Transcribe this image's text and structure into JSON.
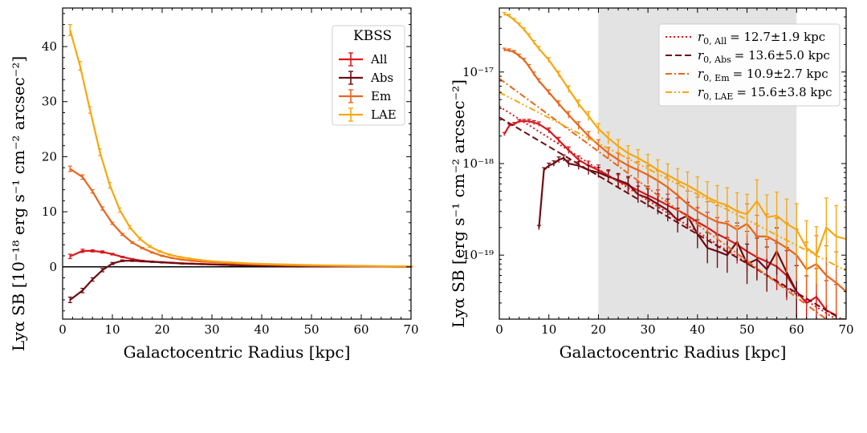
{
  "chart_data": [
    {
      "type": "line",
      "xlabel": "Galactocentric Radius [kpc]",
      "ylabel": "Lyα SB [10⁻¹⁸ erg s⁻¹ cm⁻² arcsec⁻²]",
      "xlim": [
        0,
        70
      ],
      "ylim": [
        -9.5,
        47
      ],
      "xticks": [
        "0",
        "10",
        "20",
        "30",
        "40",
        "50",
        "60",
        "70"
      ],
      "yticks": [
        "0",
        "10",
        "20",
        "30",
        "40"
      ],
      "zero_line": true,
      "legend": {
        "title": "KBSS",
        "placement": "top-right"
      },
      "colors": {
        "All": "#d7191c",
        "Abs": "#6e0d12",
        "Em": "#e8661d",
        "LAE": "#f5a812"
      },
      "series": [
        {
          "name": "All",
          "x": [
            1.5,
            4,
            6,
            8,
            10,
            12,
            14,
            16,
            18,
            20,
            22,
            24,
            26,
            28,
            30,
            32,
            34,
            36,
            38,
            40,
            45,
            50,
            55,
            60,
            65,
            70
          ],
          "y": [
            1.9,
            2.9,
            2.9,
            2.7,
            2.3,
            1.8,
            1.4,
            1.1,
            0.95,
            0.85,
            0.75,
            0.65,
            0.58,
            0.52,
            0.46,
            0.4,
            0.36,
            0.32,
            0.28,
            0.25,
            0.18,
            0.13,
            0.1,
            0.07,
            0.05,
            0.04
          ],
          "err": [
            0.4,
            0.3,
            0.2,
            0.2,
            0.15,
            0.12,
            0.1,
            0.1,
            0.08,
            0.08,
            0.07,
            0.07,
            0.06,
            0.06,
            0.06,
            0.06,
            0.05,
            0.05,
            0.05,
            0.05,
            0.05,
            0.05,
            0.05,
            0.05,
            0.05,
            0.05
          ]
        },
        {
          "name": "Abs",
          "x": [
            1.5,
            4,
            6,
            8,
            10,
            12,
            14,
            16,
            18,
            20,
            22,
            24,
            26,
            28,
            30,
            32,
            34,
            36,
            38,
            40,
            45,
            50,
            55,
            60,
            65,
            70
          ],
          "y": [
            -6.0,
            -4.3,
            -2.3,
            -0.6,
            0.6,
            1.1,
            1.1,
            1.0,
            0.9,
            0.8,
            0.7,
            0.6,
            0.55,
            0.48,
            0.42,
            0.36,
            0.3,
            0.27,
            0.24,
            0.2,
            0.14,
            0.1,
            0.07,
            0.05,
            0.03,
            0.02
          ],
          "err": [
            0.5,
            0.4,
            0.3,
            0.3,
            0.2,
            0.15,
            0.12,
            0.1,
            0.1,
            0.1,
            0.08,
            0.08,
            0.07,
            0.07,
            0.06,
            0.06,
            0.06,
            0.05,
            0.05,
            0.05,
            0.05,
            0.05,
            0.05,
            0.05,
            0.05,
            0.05
          ]
        },
        {
          "name": "Em",
          "x": [
            1.5,
            4,
            6,
            8,
            10,
            12,
            14,
            16,
            18,
            20,
            22,
            24,
            26,
            28,
            30,
            32,
            34,
            36,
            38,
            40,
            45,
            50,
            55,
            60,
            65,
            70
          ],
          "y": [
            17.8,
            16.3,
            13.7,
            10.6,
            7.9,
            5.9,
            4.4,
            3.4,
            2.6,
            2.0,
            1.6,
            1.3,
            1.1,
            0.95,
            0.85,
            0.75,
            0.65,
            0.55,
            0.48,
            0.42,
            0.3,
            0.22,
            0.16,
            0.1,
            0.06,
            0.04
          ],
          "err": [
            0.5,
            0.4,
            0.3,
            0.3,
            0.2,
            0.2,
            0.15,
            0.12,
            0.1,
            0.1,
            0.08,
            0.08,
            0.07,
            0.07,
            0.06,
            0.06,
            0.06,
            0.05,
            0.05,
            0.05,
            0.05,
            0.05,
            0.05,
            0.05,
            0.05,
            0.05
          ]
        },
        {
          "name": "LAE",
          "x": [
            1.5,
            3.5,
            5.5,
            7.5,
            9.5,
            11.5,
            13.5,
            15.5,
            17.5,
            19.5,
            21.5,
            23.5,
            25.5,
            27.5,
            29.5,
            31.5,
            33.5,
            35.5,
            37.5,
            39.5,
            45,
            50,
            55,
            60,
            65,
            70
          ],
          "y": [
            43.0,
            36.5,
            28.5,
            20.8,
            14.8,
            10.3,
            7.2,
            5.1,
            3.7,
            2.8,
            2.2,
            1.8,
            1.5,
            1.25,
            1.05,
            0.92,
            0.82,
            0.72,
            0.62,
            0.55,
            0.42,
            0.32,
            0.24,
            0.18,
            0.12,
            0.08
          ],
          "err": [
            1.0,
            0.8,
            0.6,
            0.6,
            0.5,
            0.4,
            0.3,
            0.25,
            0.2,
            0.15,
            0.12,
            0.1,
            0.1,
            0.08,
            0.08,
            0.07,
            0.07,
            0.06,
            0.06,
            0.06,
            0.06,
            0.06,
            0.06,
            0.06,
            0.06,
            0.06
          ]
        }
      ]
    },
    {
      "type": "line",
      "xlabel": "Galactocentric Radius [kpc]",
      "ylabel": "Lyα SB [erg s⁻¹ cm⁻² arcsec⁻²]",
      "xlim": [
        0,
        70
      ],
      "yscale": "log",
      "ylim": [
        2e-20,
        5e-17
      ],
      "xticks": [
        "0",
        "10",
        "20",
        "30",
        "40",
        "50",
        "60",
        "70"
      ],
      "yticks": [
        {
          "value": 1e-19,
          "label": "10⁻¹⁹"
        },
        {
          "value": 1e-18,
          "label": "10⁻¹⁸"
        },
        {
          "value": 1e-17,
          "label": "10⁻¹⁷"
        }
      ],
      "shaded_region": [
        20,
        60
      ],
      "legend": {
        "placement": "top-right"
      },
      "series": [
        {
          "name": "All",
          "x": [
            1,
            2,
            3,
            4,
            5,
            6,
            7,
            8,
            10,
            12,
            14,
            16,
            18,
            20,
            22,
            24,
            26,
            28,
            30,
            32,
            34,
            36,
            38,
            40,
            42,
            44,
            46,
            48,
            50,
            52,
            54,
            56,
            58,
            60,
            62,
            64,
            66,
            68
          ],
          "y": [
            2.1e-18,
            2.6e-18,
            2.7e-18,
            2.9e-18,
            2.9e-18,
            2.9e-18,
            2.8e-18,
            2.7e-18,
            2.3e-18,
            1.8e-18,
            1.4e-18,
            1.1e-18,
            9.5e-19,
            8.5e-19,
            7.4e-19,
            6.4e-19,
            5.8e-19,
            5.1e-19,
            4.5e-19,
            4e-19,
            3.5e-19,
            3.1e-19,
            2.7e-19,
            2.3e-19,
            2e-19,
            1.7e-19,
            1.5e-19,
            1.3e-19,
            1.1e-19,
            9.5e-20,
            8.5e-20,
            7.5e-20,
            6e-20,
            4e-20,
            3e-20,
            3.5e-20,
            2.5e-20,
            2.2e-20
          ]
        },
        {
          "name": "Abs",
          "x": [
            8,
            9,
            10,
            11,
            12,
            13,
            14,
            16,
            18,
            20,
            22,
            24,
            26,
            28,
            30,
            32,
            34,
            36,
            38,
            40,
            42,
            44,
            46,
            48,
            50,
            52,
            54,
            56,
            58,
            60
          ],
          "y": [
            2e-19,
            8.5e-19,
            9.5e-19,
            1e-18,
            1.1e-18,
            1.15e-18,
            1e-18,
            9.5e-19,
            8.5e-19,
            8e-19,
            7.2e-19,
            6.6e-19,
            6e-19,
            4.6e-19,
            4.2e-19,
            3.6e-19,
            3.1e-19,
            2.4e-19,
            2.7e-19,
            1.7e-19,
            1.2e-19,
            1.1e-19,
            1e-19,
            1.4e-19,
            8e-20,
            9e-20,
            7e-20,
            1.1e-19,
            6.5e-20,
            4e-20
          ]
        },
        {
          "name": "Em",
          "x": [
            1,
            2,
            3,
            4,
            5,
            6,
            7,
            8,
            10,
            12,
            14,
            16,
            18,
            20,
            22,
            24,
            26,
            28,
            30,
            32,
            34,
            36,
            38,
            40,
            42,
            44,
            46,
            48,
            50,
            52,
            54,
            56,
            58,
            60,
            62,
            64,
            66,
            68,
            70
          ],
          "y": [
            1.75e-17,
            1.72e-17,
            1.65e-17,
            1.5e-17,
            1.35e-17,
            1.15e-17,
            9.5e-18,
            8e-18,
            6e-18,
            4.5e-18,
            3.4e-18,
            2.6e-18,
            2e-18,
            1.6e-18,
            1.3e-18,
            1.1e-18,
            9.5e-19,
            8.5e-19,
            7.5e-19,
            6.5e-19,
            5.5e-19,
            4.5e-19,
            3.6e-19,
            3e-19,
            2.6e-19,
            2.3e-19,
            2.2e-19,
            1.9e-19,
            2.2e-19,
            1.6e-19,
            1.6e-19,
            1.4e-19,
            1.2e-19,
            1e-19,
            7e-20,
            8e-20,
            6e-20,
            5e-20,
            4e-20
          ]
        },
        {
          "name": "LAE",
          "x": [
            1,
            2,
            3,
            4,
            5,
            6,
            7,
            8,
            10,
            12,
            14,
            16,
            18,
            20,
            22,
            24,
            26,
            28,
            30,
            32,
            34,
            36,
            38,
            40,
            42,
            44,
            46,
            48,
            50,
            52,
            54,
            56,
            58,
            60,
            62,
            64,
            66,
            68,
            70
          ],
          "y": [
            4.3e-17,
            4.1e-17,
            3.7e-17,
            3.3e-17,
            2.9e-17,
            2.5e-17,
            2.1e-17,
            1.8e-17,
            1.35e-17,
            9.5e-18,
            6.5e-18,
            4.5e-18,
            3.3e-18,
            2.4e-18,
            1.9e-18,
            1.55e-18,
            1.3e-18,
            1.15e-18,
            1e-18,
            8.5e-19,
            7.5e-19,
            6.5e-19,
            5.8e-19,
            5e-19,
            4.3e-19,
            3.8e-19,
            3.5e-19,
            3e-19,
            2.8e-19,
            3.9e-19,
            2.6e-19,
            2.7e-19,
            2.2e-19,
            1.9e-19,
            1.2e-19,
            1e-19,
            2e-19,
            1.6e-19,
            1.5e-19
          ]
        }
      ],
      "fits": [
        {
          "name": "r0,All",
          "r0_label": "r",
          "sub": "0, All",
          "text": "= 12.7±1.9 kpc",
          "style": "dotted",
          "color": "#d7191c",
          "amplitude": 4.2e-18,
          "r0": 12.7
        },
        {
          "name": "r0,Abs",
          "r0_label": "r",
          "sub": "0, Abs",
          "text": "= 13.6±5.0 kpc",
          "style": "dashed",
          "color": "#6e0d12",
          "amplitude": 3.2e-18,
          "r0": 13.6
        },
        {
          "name": "r0,Em",
          "r0_label": "r",
          "sub": "0, Em",
          "text": "= 10.9±2.7 kpc",
          "style": "dashdot",
          "color": "#e8661d",
          "amplitude": 8.5e-18,
          "r0": 10.9
        },
        {
          "name": "r0,LAE",
          "r0_label": "r",
          "sub": "0, LAE",
          "text": "= 15.6±3.8 kpc",
          "style": "dashdotdot",
          "color": "#f5a812",
          "amplitude": 6e-18,
          "r0": 15.6
        }
      ]
    }
  ]
}
